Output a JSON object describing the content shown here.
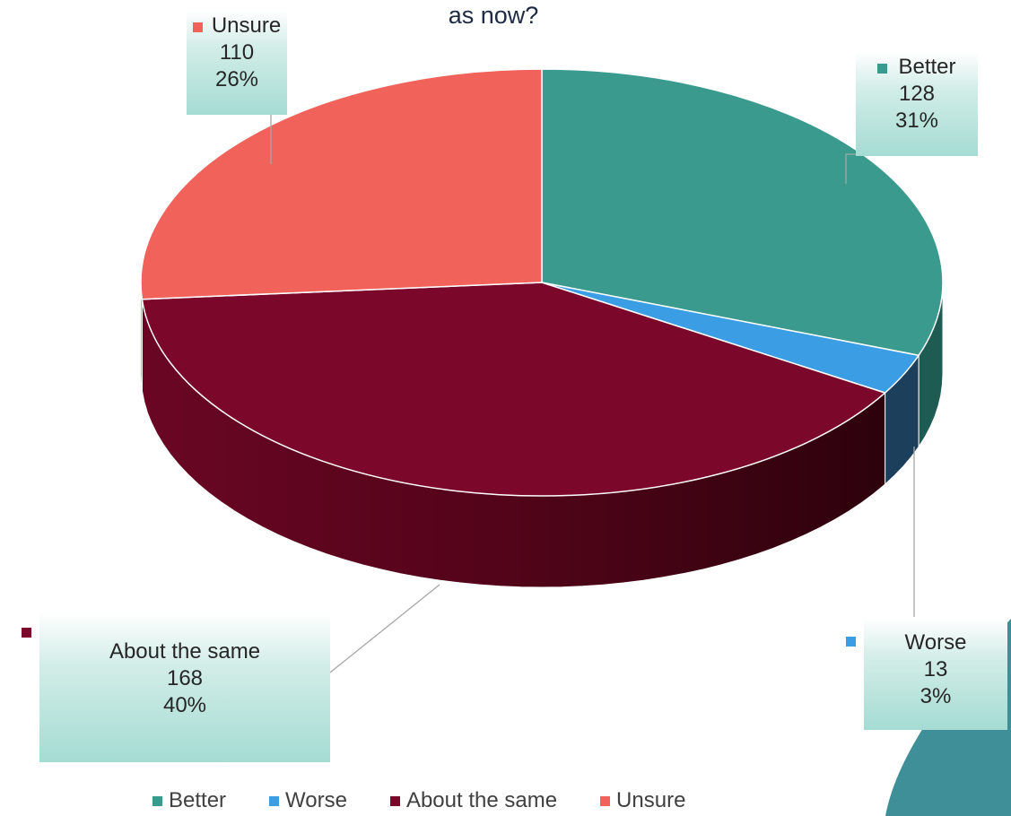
{
  "title_fragment": "as now?",
  "chart_data": {
    "type": "pie",
    "title": "",
    "categories": [
      "Better",
      "Worse",
      "About the same",
      "Unsure"
    ],
    "values": [
      128,
      13,
      168,
      110
    ],
    "percentages": [
      "31%",
      "3%",
      "40%",
      "26%"
    ],
    "value_labels": [
      "128",
      "13",
      "168",
      "110"
    ],
    "legend_position": "bottom",
    "style": "3d",
    "colors": [
      "#3b9a8e",
      "#3b9de3",
      "#7b082b",
      "#f1625a"
    ]
  },
  "colors": {
    "accent_corner": "#3f8f98"
  }
}
